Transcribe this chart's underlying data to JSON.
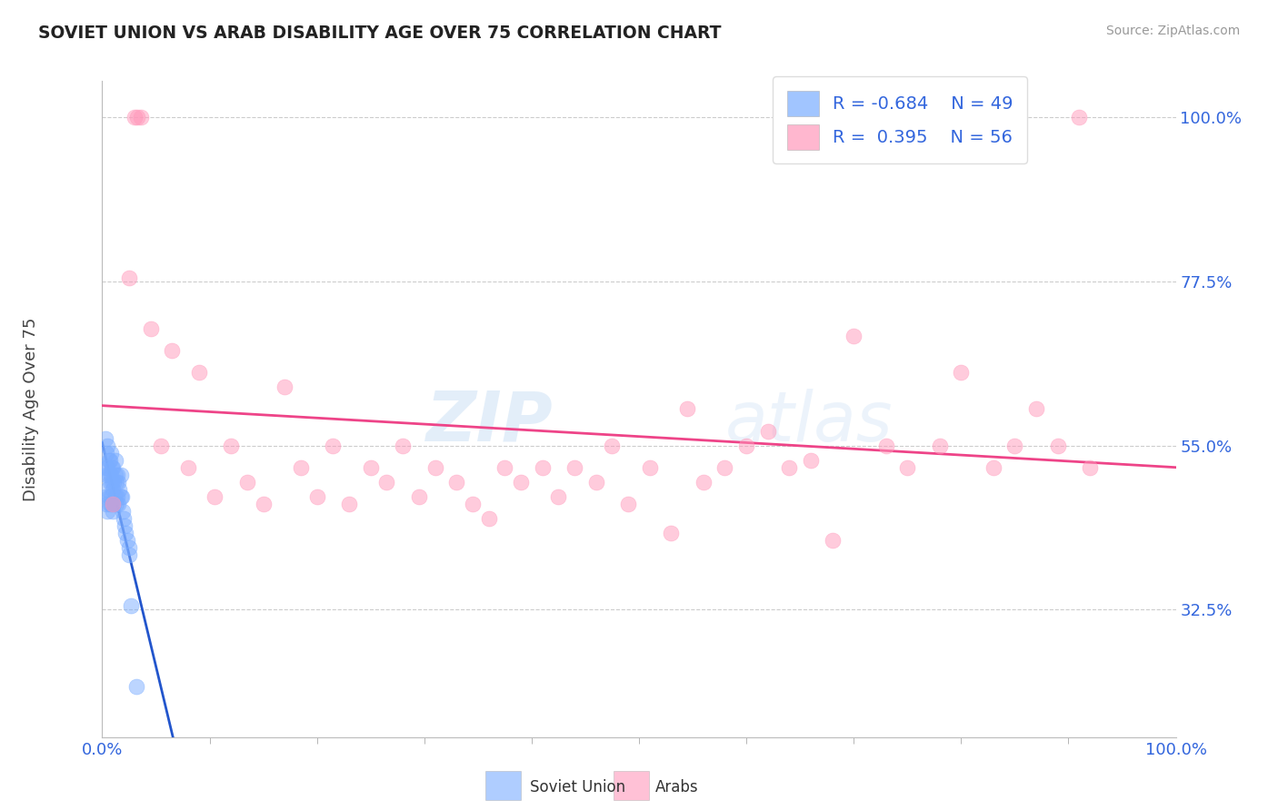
{
  "title": "SOVIET UNION VS ARAB DISABILITY AGE OVER 75 CORRELATION CHART",
  "source_text": "Source: ZipAtlas.com",
  "ylabel": "Disability Age Over 75",
  "xlim": [
    0.0,
    100.0
  ],
  "ylim": [
    15.0,
    105.0
  ],
  "yticks_right": [
    32.5,
    55.0,
    77.5,
    100.0
  ],
  "soviet_color": "#7AADFF",
  "arab_color": "#FF99BB",
  "soviet_line_color": "#2255CC",
  "arab_line_color": "#EE4488",
  "soviet_R": -0.684,
  "soviet_N": 49,
  "arab_R": 0.395,
  "arab_N": 56,
  "legend_label_soviet": "Soviet Union",
  "legend_label_arab": "Arabs",
  "watermark_zip": "ZIP",
  "watermark_atlas": "atlas",
  "background_color": "#FFFFFF",
  "grid_color": "#CCCCCC",
  "title_color": "#222222",
  "tick_label_color": "#3366DD",
  "soviet_x": [
    0.3,
    0.3,
    0.3,
    0.4,
    0.4,
    0.4,
    0.5,
    0.5,
    0.5,
    0.5,
    0.6,
    0.6,
    0.6,
    0.7,
    0.7,
    0.7,
    0.8,
    0.8,
    0.8,
    0.9,
    0.9,
    0.9,
    1.0,
    1.0,
    1.0,
    1.1,
    1.1,
    1.2,
    1.2,
    1.2,
    1.3,
    1.3,
    1.4,
    1.4,
    1.5,
    1.5,
    1.6,
    1.7,
    1.7,
    1.8,
    1.9,
    2.0,
    2.1,
    2.2,
    2.3,
    2.5,
    2.5,
    2.7,
    3.2
  ],
  "soviet_y": [
    48,
    52,
    56,
    47,
    51,
    54,
    46,
    49,
    52,
    55,
    48,
    51,
    53,
    47,
    50,
    53,
    48,
    51,
    54,
    47,
    50,
    52,
    46,
    49,
    52,
    47,
    50,
    48,
    51,
    53,
    47,
    50,
    48,
    51,
    47,
    50,
    49,
    48,
    51,
    48,
    46,
    45,
    44,
    43,
    42,
    41,
    40,
    33,
    22
  ],
  "arab_x": [
    1.0,
    2.5,
    3.0,
    3.3,
    3.6,
    4.5,
    5.5,
    6.5,
    8.0,
    9.0,
    10.5,
    12.0,
    13.5,
    15.0,
    17.0,
    18.5,
    20.0,
    21.5,
    23.0,
    25.0,
    26.5,
    28.0,
    29.5,
    31.0,
    33.0,
    34.5,
    36.0,
    37.5,
    39.0,
    41.0,
    42.5,
    44.0,
    46.0,
    47.5,
    49.0,
    51.0,
    53.0,
    54.5,
    56.0,
    58.0,
    60.0,
    62.0,
    64.0,
    66.0,
    68.0,
    70.0,
    73.0,
    75.0,
    78.0,
    80.0,
    83.0,
    85.0,
    87.0,
    89.0,
    91.0,
    92.0
  ],
  "arab_y": [
    47,
    78,
    100,
    100,
    100,
    71,
    55,
    68,
    52,
    65,
    48,
    55,
    50,
    47,
    63,
    52,
    48,
    55,
    47,
    52,
    50,
    55,
    48,
    52,
    50,
    47,
    45,
    52,
    50,
    52,
    48,
    52,
    50,
    55,
    47,
    52,
    43,
    60,
    50,
    52,
    55,
    57,
    52,
    53,
    42,
    70,
    55,
    52,
    55,
    65,
    52,
    55,
    60,
    55,
    100,
    52
  ]
}
